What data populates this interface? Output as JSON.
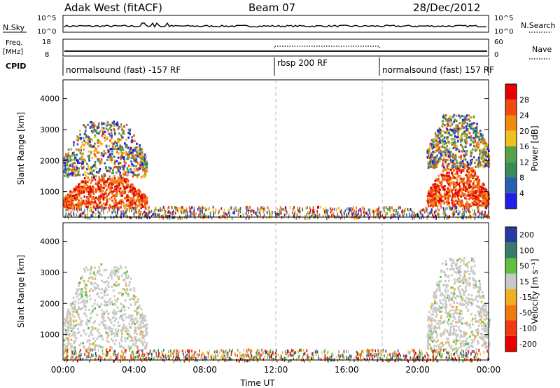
{
  "header": {
    "radar": "Adak West (fitACF)",
    "beam": "Beam 07",
    "date": "28/Dec/2012"
  },
  "top_panels": {
    "nsky_label": "N.Sky",
    "nsky_ticks": [
      "10^5",
      "10^0"
    ],
    "nsearch_label": "N.Search",
    "nsearch_ticks": [
      "10^5",
      "10^0"
    ],
    "freq_label": "Freq.",
    "freq_unit": "[MHz]",
    "freq_ticks": [
      "18",
      "8"
    ],
    "nave_label": "Nave",
    "nave_ticks": [
      "60",
      "0"
    ],
    "cpid_label": "CPID"
  },
  "cpid_segments": [
    {
      "label": "normalsound (fast) -157 RF",
      "start_hour": 0
    },
    {
      "label": "rbsp 200 RF",
      "start_hour": 12
    },
    {
      "label": "normalsound (fast) 157 RF",
      "start_hour": 18
    }
  ],
  "colors": {
    "power_scale": [
      "#1f1fe6",
      "#2a5fb0",
      "#3a8a5a",
      "#58a24a",
      "#f0c020",
      "#f08a10",
      "#f04a10",
      "#e60000"
    ],
    "velocity_scale": [
      "#2a3aa0",
      "#3a7a6a",
      "#60c040",
      "#c8c8c8",
      "#f0b020",
      "#f07a10",
      "#f03a10",
      "#e60000"
    ]
  },
  "chart_data": [
    {
      "type": "heatmap",
      "name": "power",
      "ylabel": "Slant Range [km]",
      "yticks": [
        1000,
        2000,
        3000,
        4000
      ],
      "ylim": [
        180,
        4600
      ],
      "xlim": [
        0,
        24
      ],
      "xticks": [
        "00:00",
        "04:00",
        "08:00",
        "12:00",
        "16:00",
        "20:00",
        "00:00"
      ],
      "colorbar_label": "Power [dB]",
      "colorbar_ticks": [
        "4",
        "8",
        "12",
        "16",
        "20",
        "24",
        "28"
      ],
      "regions": [
        {
          "t_start": 0.0,
          "t_end": 4.7,
          "r_min": 500,
          "r_max": 1500,
          "level": "high"
        },
        {
          "t_start": 0.0,
          "t_end": 4.7,
          "r_min": 1500,
          "r_max": 3300,
          "level": "mixed"
        },
        {
          "t_start": 20.5,
          "t_end": 24.0,
          "r_min": 550,
          "r_max": 1800,
          "level": "high"
        },
        {
          "t_start": 20.5,
          "t_end": 24.0,
          "r_min": 1800,
          "r_max": 3500,
          "level": "mixed"
        },
        {
          "t_start": 0.0,
          "t_end": 24.0,
          "r_min": 180,
          "r_max": 550,
          "level": "scattered"
        }
      ]
    },
    {
      "type": "heatmap",
      "name": "velocity",
      "ylabel": "Slant Range [km]",
      "yticks": [
        1000,
        2000,
        3000,
        4000
      ],
      "ylim": [
        180,
        4600
      ],
      "xlim": [
        0,
        24
      ],
      "xlabel": "Time UT",
      "xticks": [
        "00:00",
        "04:00",
        "08:00",
        "12:00",
        "16:00",
        "20:00",
        "00:00"
      ],
      "colorbar_label": "Velocity [m s⁻¹]",
      "colorbar_ticks": [
        "200",
        "100",
        "50",
        "15",
        "-15",
        "-50",
        "-100",
        "-200"
      ],
      "regions": [
        {
          "t_start": 0.0,
          "t_end": 4.7,
          "r_min": 500,
          "r_max": 3300,
          "level": "near-zero"
        },
        {
          "t_start": 20.5,
          "t_end": 24.0,
          "r_min": 550,
          "r_max": 3500,
          "level": "near-zero"
        },
        {
          "t_start": 0.0,
          "t_end": 24.0,
          "r_min": 180,
          "r_max": 550,
          "level": "scattered"
        }
      ]
    }
  ]
}
